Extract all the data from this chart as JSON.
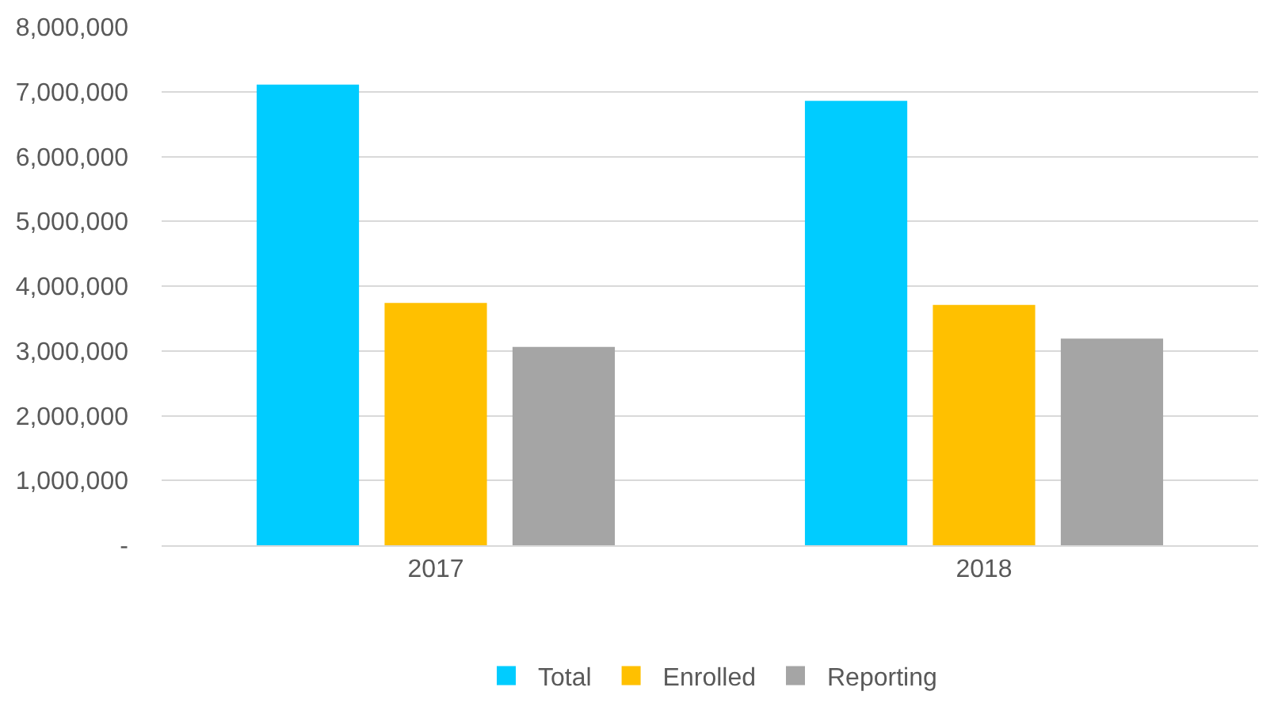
{
  "chart_data": {
    "type": "bar",
    "categories": [
      "2017",
      "2018"
    ],
    "series": [
      {
        "name": "Total",
        "color": "#00ccff",
        "values": [
          7110000,
          6860000
        ]
      },
      {
        "name": "Enrolled",
        "color": "#ffc000",
        "values": [
          3740000,
          3710000
        ]
      },
      {
        "name": "Reporting",
        "color": "#a5a5a5",
        "values": [
          3060000,
          3190000
        ]
      }
    ],
    "ylim": [
      0,
      8000000
    ],
    "yticks": [
      {
        "value": 0,
        "label": "-"
      },
      {
        "value": 1000000,
        "label": "1,000,000"
      },
      {
        "value": 2000000,
        "label": "2,000,000"
      },
      {
        "value": 3000000,
        "label": "3,000,000"
      },
      {
        "value": 4000000,
        "label": "4,000,000"
      },
      {
        "value": 5000000,
        "label": "5,000,000"
      },
      {
        "value": 6000000,
        "label": "6,000,000"
      },
      {
        "value": 7000000,
        "label": "7,000,000"
      },
      {
        "value": 8000000,
        "label": "8,000,000"
      }
    ],
    "grid": "y",
    "legend": "bottom"
  }
}
